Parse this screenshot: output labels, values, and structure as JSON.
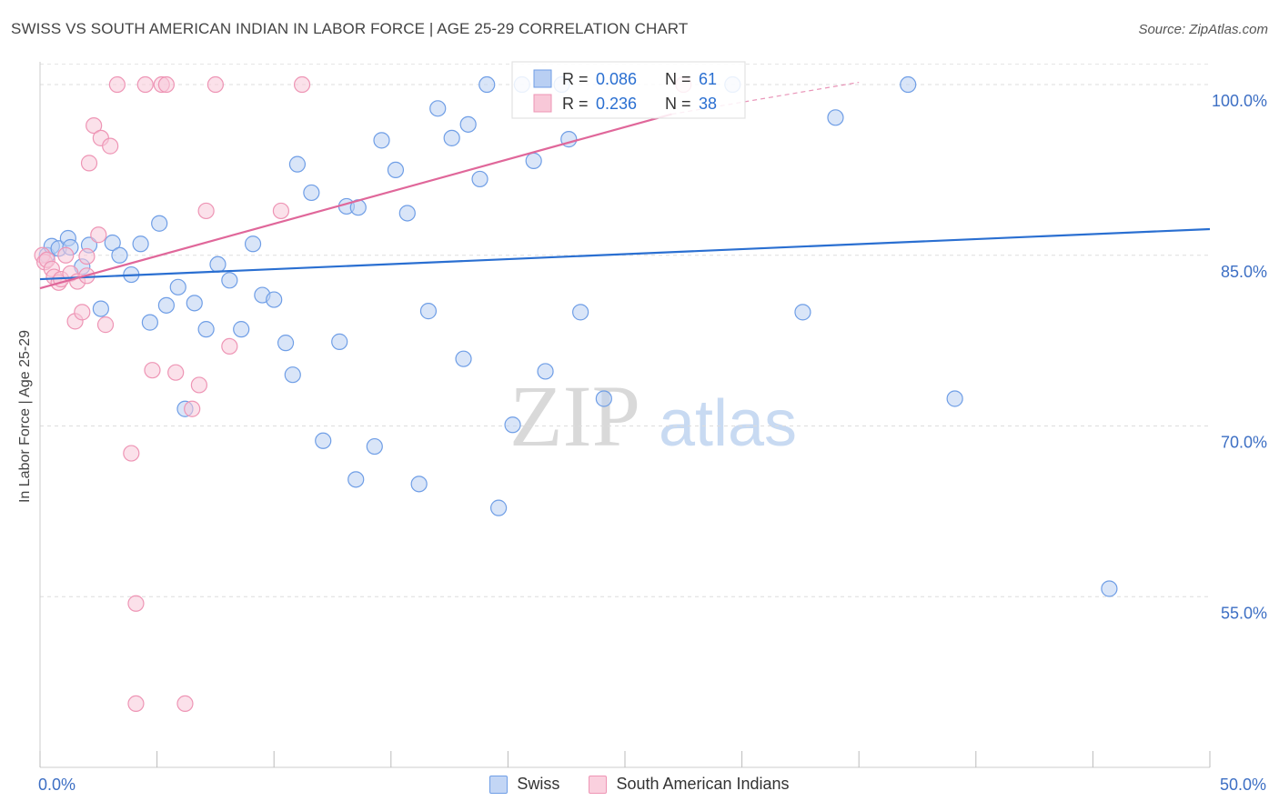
{
  "title": "SWISS VS SOUTH AMERICAN INDIAN IN LABOR FORCE | AGE 25-29 CORRELATION CHART",
  "source": "Source: ZipAtlas.com",
  "watermark": {
    "zip": "ZIP",
    "atlas": "atlas"
  },
  "chart_data": {
    "type": "scatter",
    "title": "SWISS VS SOUTH AMERICAN INDIAN IN LABOR FORCE | AGE 25-29 CORRELATION CHART",
    "xlabel": "",
    "ylabel": "In Labor Force | Age 25-29",
    "xlim": [
      0,
      50
    ],
    "ylim": [
      40,
      102
    ],
    "x_tick_labels": [
      "0.0%",
      "50.0%"
    ],
    "y_ticks": [
      {
        "value": 100,
        "label": "100.0%"
      },
      {
        "value": 85,
        "label": "85.0%"
      },
      {
        "value": 70,
        "label": "70.0%"
      },
      {
        "value": 55,
        "label": "55.0%"
      }
    ],
    "grid": true,
    "legend_position": "top-center",
    "series": [
      {
        "name": "Swiss",
        "color": "#6f9ee6",
        "fill": "#b9cff3",
        "line_color": "#2a6fd1",
        "R": "0.086",
        "N": "61",
        "trend": {
          "x": [
            0,
            50
          ],
          "y": [
            82.9,
            87.3
          ]
        },
        "points": [
          [
            0.3,
            85.0
          ],
          [
            0.5,
            85.8
          ],
          [
            0.8,
            85.6
          ],
          [
            1.2,
            86.5
          ],
          [
            1.3,
            85.7
          ],
          [
            1.8,
            84.0
          ],
          [
            2.1,
            85.9
          ],
          [
            2.6,
            80.3
          ],
          [
            3.1,
            86.1
          ],
          [
            3.4,
            85.0
          ],
          [
            3.9,
            83.3
          ],
          [
            4.3,
            86.0
          ],
          [
            4.7,
            79.1
          ],
          [
            5.1,
            87.8
          ],
          [
            5.4,
            80.6
          ],
          [
            5.9,
            82.2
          ],
          [
            6.2,
            71.5
          ],
          [
            6.6,
            80.8
          ],
          [
            7.1,
            78.5
          ],
          [
            7.6,
            84.2
          ],
          [
            8.1,
            82.8
          ],
          [
            8.6,
            78.5
          ],
          [
            9.1,
            86.0
          ],
          [
            9.5,
            81.5
          ],
          [
            10.0,
            81.1
          ],
          [
            10.5,
            77.3
          ],
          [
            10.8,
            74.5
          ],
          [
            11.0,
            93.0
          ],
          [
            11.6,
            90.5
          ],
          [
            12.1,
            68.7
          ],
          [
            12.8,
            77.4
          ],
          [
            13.1,
            89.3
          ],
          [
            13.5,
            65.3
          ],
          [
            13.6,
            89.2
          ],
          [
            14.3,
            68.2
          ],
          [
            14.6,
            95.1
          ],
          [
            15.2,
            92.5
          ],
          [
            15.7,
            88.7
          ],
          [
            16.2,
            64.9
          ],
          [
            16.6,
            80.1
          ],
          [
            17.0,
            97.9
          ],
          [
            17.6,
            95.3
          ],
          [
            18.1,
            75.9
          ],
          [
            18.3,
            96.5
          ],
          [
            18.8,
            91.7
          ],
          [
            19.1,
            100.0
          ],
          [
            19.6,
            62.8
          ],
          [
            20.2,
            70.1
          ],
          [
            20.6,
            100.0
          ],
          [
            21.1,
            93.3
          ],
          [
            21.6,
            74.8
          ],
          [
            22.3,
            100.0
          ],
          [
            22.6,
            95.2
          ],
          [
            23.1,
            80.0
          ],
          [
            24.1,
            72.4
          ],
          [
            29.6,
            100.0
          ],
          [
            32.6,
            80.0
          ],
          [
            34.0,
            97.1
          ],
          [
            37.1,
            100.0
          ],
          [
            39.1,
            72.4
          ],
          [
            45.7,
            55.7
          ]
        ]
      },
      {
        "name": "South American Indians",
        "color": "#ee95b5",
        "fill": "#f8c8d8",
        "line_color": "#e0679a",
        "R": "0.236",
        "N": "38",
        "trend": {
          "x": [
            0,
            27
          ],
          "y": [
            82.1,
            97.4
          ]
        },
        "trend_dashed": {
          "x": [
            27,
            35
          ],
          "y": [
            97.4,
            100.2
          ]
        },
        "points": [
          [
            0.1,
            85.0
          ],
          [
            0.2,
            84.4
          ],
          [
            0.3,
            84.6
          ],
          [
            0.5,
            83.8
          ],
          [
            0.6,
            83.1
          ],
          [
            0.8,
            82.6
          ],
          [
            0.9,
            82.9
          ],
          [
            1.1,
            85.0
          ],
          [
            1.3,
            83.4
          ],
          [
            1.5,
            79.2
          ],
          [
            1.6,
            82.7
          ],
          [
            1.8,
            80.0
          ],
          [
            2.0,
            84.9
          ],
          [
            2.1,
            93.1
          ],
          [
            2.3,
            96.4
          ],
          [
            2.5,
            86.8
          ],
          [
            2.6,
            95.3
          ],
          [
            2.8,
            78.9
          ],
          [
            3.0,
            94.6
          ],
          [
            3.3,
            100.0
          ],
          [
            3.9,
            67.6
          ],
          [
            4.1,
            54.4
          ],
          [
            4.5,
            100.0
          ],
          [
            4.8,
            74.9
          ],
          [
            5.2,
            100.0
          ],
          [
            5.4,
            100.0
          ],
          [
            5.8,
            74.7
          ],
          [
            6.2,
            45.6
          ],
          [
            6.5,
            71.5
          ],
          [
            6.8,
            73.6
          ],
          [
            7.1,
            88.9
          ],
          [
            7.5,
            100.0
          ],
          [
            8.1,
            77.0
          ],
          [
            10.3,
            88.9
          ],
          [
            11.2,
            100.0
          ],
          [
            27.5,
            100.0
          ],
          [
            4.1,
            45.6
          ],
          [
            2.0,
            83.2
          ]
        ]
      }
    ]
  }
}
